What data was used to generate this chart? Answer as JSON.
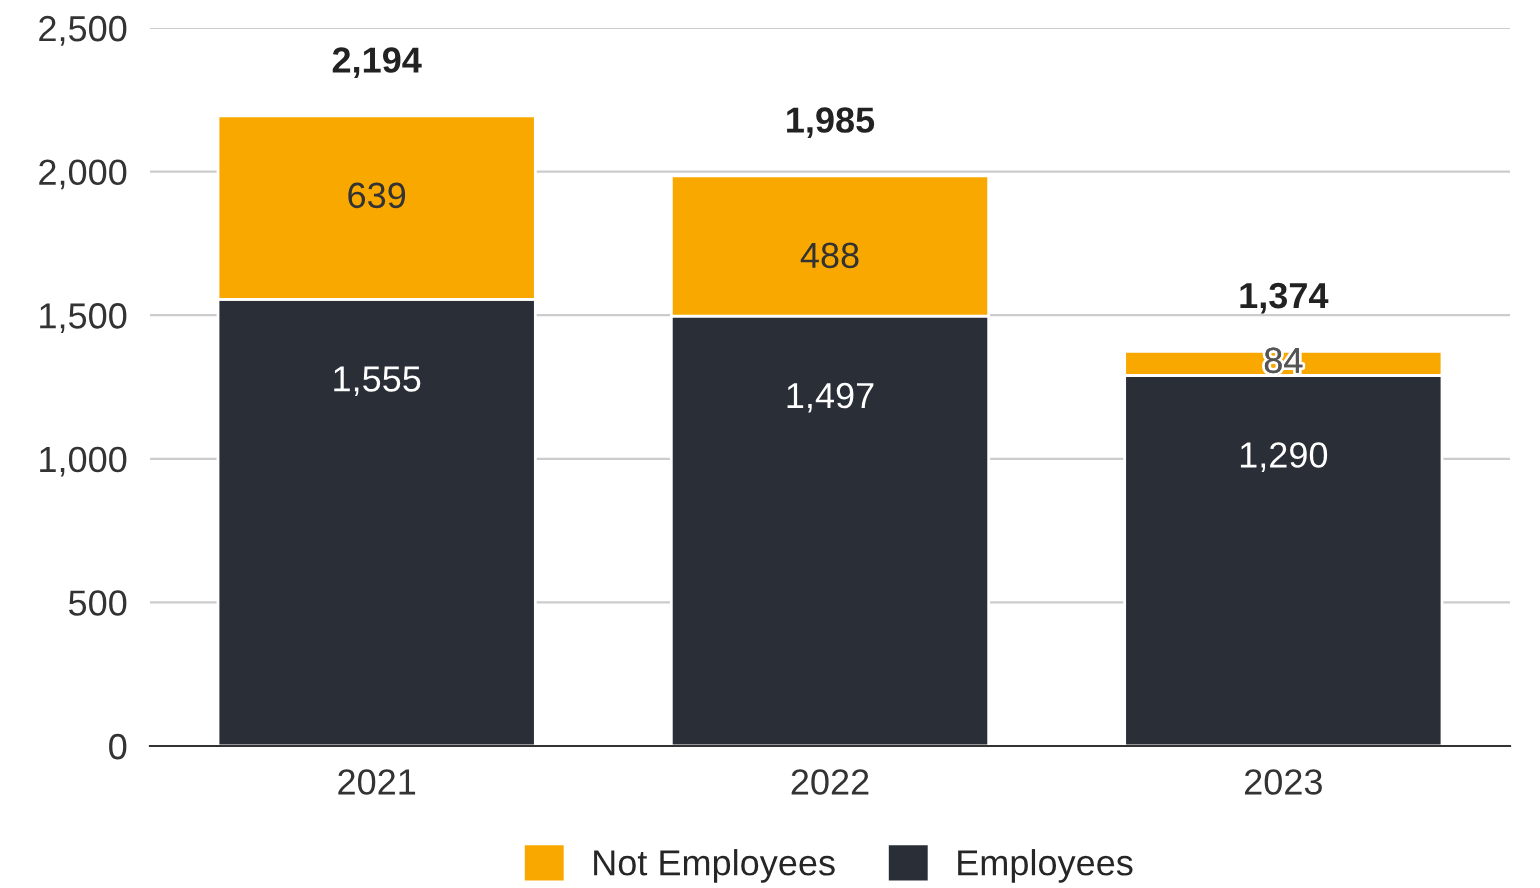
{
  "chart_data": {
    "type": "bar",
    "stacked": true,
    "categories": [
      "2021",
      "2022",
      "2023"
    ],
    "series": [
      {
        "name": "Employees",
        "color": "#292e37",
        "values": [
          1555,
          1497,
          1290
        ],
        "value_labels": [
          "1,555",
          "1,497",
          "1,290"
        ]
      },
      {
        "name": "Not Employees",
        "color": "#f9a800",
        "values": [
          639,
          488,
          84
        ],
        "value_labels": [
          "639",
          "488",
          "84"
        ]
      }
    ],
    "totals": [
      "2,194",
      "1,985",
      "1,374"
    ],
    "ylim": [
      0,
      2500
    ],
    "yticks": [
      {
        "value": 0,
        "label": "0"
      },
      {
        "value": 500,
        "label": "500"
      },
      {
        "value": 1000,
        "label": "1,000"
      },
      {
        "value": 1500,
        "label": "1,500"
      },
      {
        "value": 2000,
        "label": "2,000"
      },
      {
        "value": 2500,
        "label": "2,500"
      }
    ],
    "grid": "y",
    "legend": "bottom"
  }
}
